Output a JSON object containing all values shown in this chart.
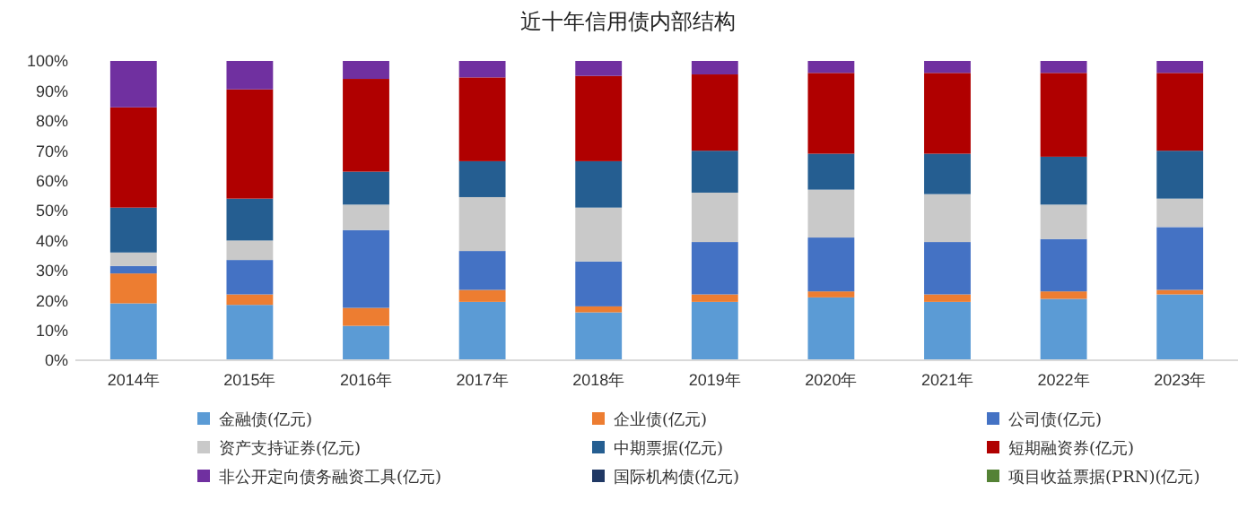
{
  "chart_data": {
    "type": "bar",
    "stacked": true,
    "title": "近十年信用债内部结构",
    "categories": [
      "2014年",
      "2015年",
      "2016年",
      "2017年",
      "2018年",
      "2019年",
      "2020年",
      "2021年",
      "2022年",
      "2023年"
    ],
    "ylim": [
      0,
      100
    ],
    "yticks": [
      {
        "value": 0,
        "label": "0%"
      },
      {
        "value": 10,
        "label": "10%"
      },
      {
        "value": 20,
        "label": "20%"
      },
      {
        "value": 30,
        "label": "30%"
      },
      {
        "value": 40,
        "label": "40%"
      },
      {
        "value": 50,
        "label": "50%"
      },
      {
        "value": 60,
        "label": "60%"
      },
      {
        "value": 70,
        "label": "70%"
      },
      {
        "value": 80,
        "label": "80%"
      },
      {
        "value": 90,
        "label": "90%"
      },
      {
        "value": 100,
        "label": "100%"
      }
    ],
    "legend": "bottom",
    "grid": false,
    "series": [
      {
        "name": "金融债(亿元)",
        "color": "#5b9bd5",
        "values": [
          19,
          18.5,
          11.5,
          19.5,
          16,
          19.5,
          21,
          19.5,
          20.5,
          22
        ]
      },
      {
        "name": "企业债(亿元)",
        "color": "#ed7d31",
        "values": [
          10,
          3.5,
          6,
          4,
          2,
          2.5,
          2,
          2.5,
          2.5,
          1.5
        ]
      },
      {
        "name": "公司债(亿元)",
        "color": "#4472c4",
        "values": [
          2.5,
          11.5,
          26,
          13,
          15,
          17.5,
          18,
          17.5,
          17.5,
          21
        ]
      },
      {
        "name": "资产支持证券(亿元)",
        "color": "#c9c9c9",
        "values": [
          4.5,
          6.5,
          8.5,
          18,
          18,
          16.5,
          16,
          16,
          11.5,
          9.5
        ]
      },
      {
        "name": "中期票据(亿元)",
        "color": "#255e91",
        "values": [
          15,
          14,
          11,
          12,
          15.5,
          14,
          12,
          13.5,
          16,
          16
        ]
      },
      {
        "name": "短期融资券(亿元)",
        "color": "#b00000",
        "values": [
          33.5,
          36.5,
          31,
          28,
          28.5,
          25.5,
          27,
          27,
          28,
          26
        ]
      },
      {
        "name": "非公开定向债务融资工具(亿元)",
        "color": "#7030a0",
        "values": [
          15.5,
          9.5,
          6,
          5.5,
          5,
          4.5,
          4,
          4,
          4,
          4
        ]
      },
      {
        "name": "国际机构债(亿元)",
        "color": "#203864",
        "values": [
          0,
          0,
          0,
          0,
          0,
          0,
          0,
          0,
          0,
          0
        ]
      },
      {
        "name": "项目收益票据(PRN)(亿元)",
        "color": "#548235",
        "values": [
          0,
          0,
          0,
          0,
          0,
          0,
          0,
          0,
          0,
          0
        ]
      }
    ]
  }
}
